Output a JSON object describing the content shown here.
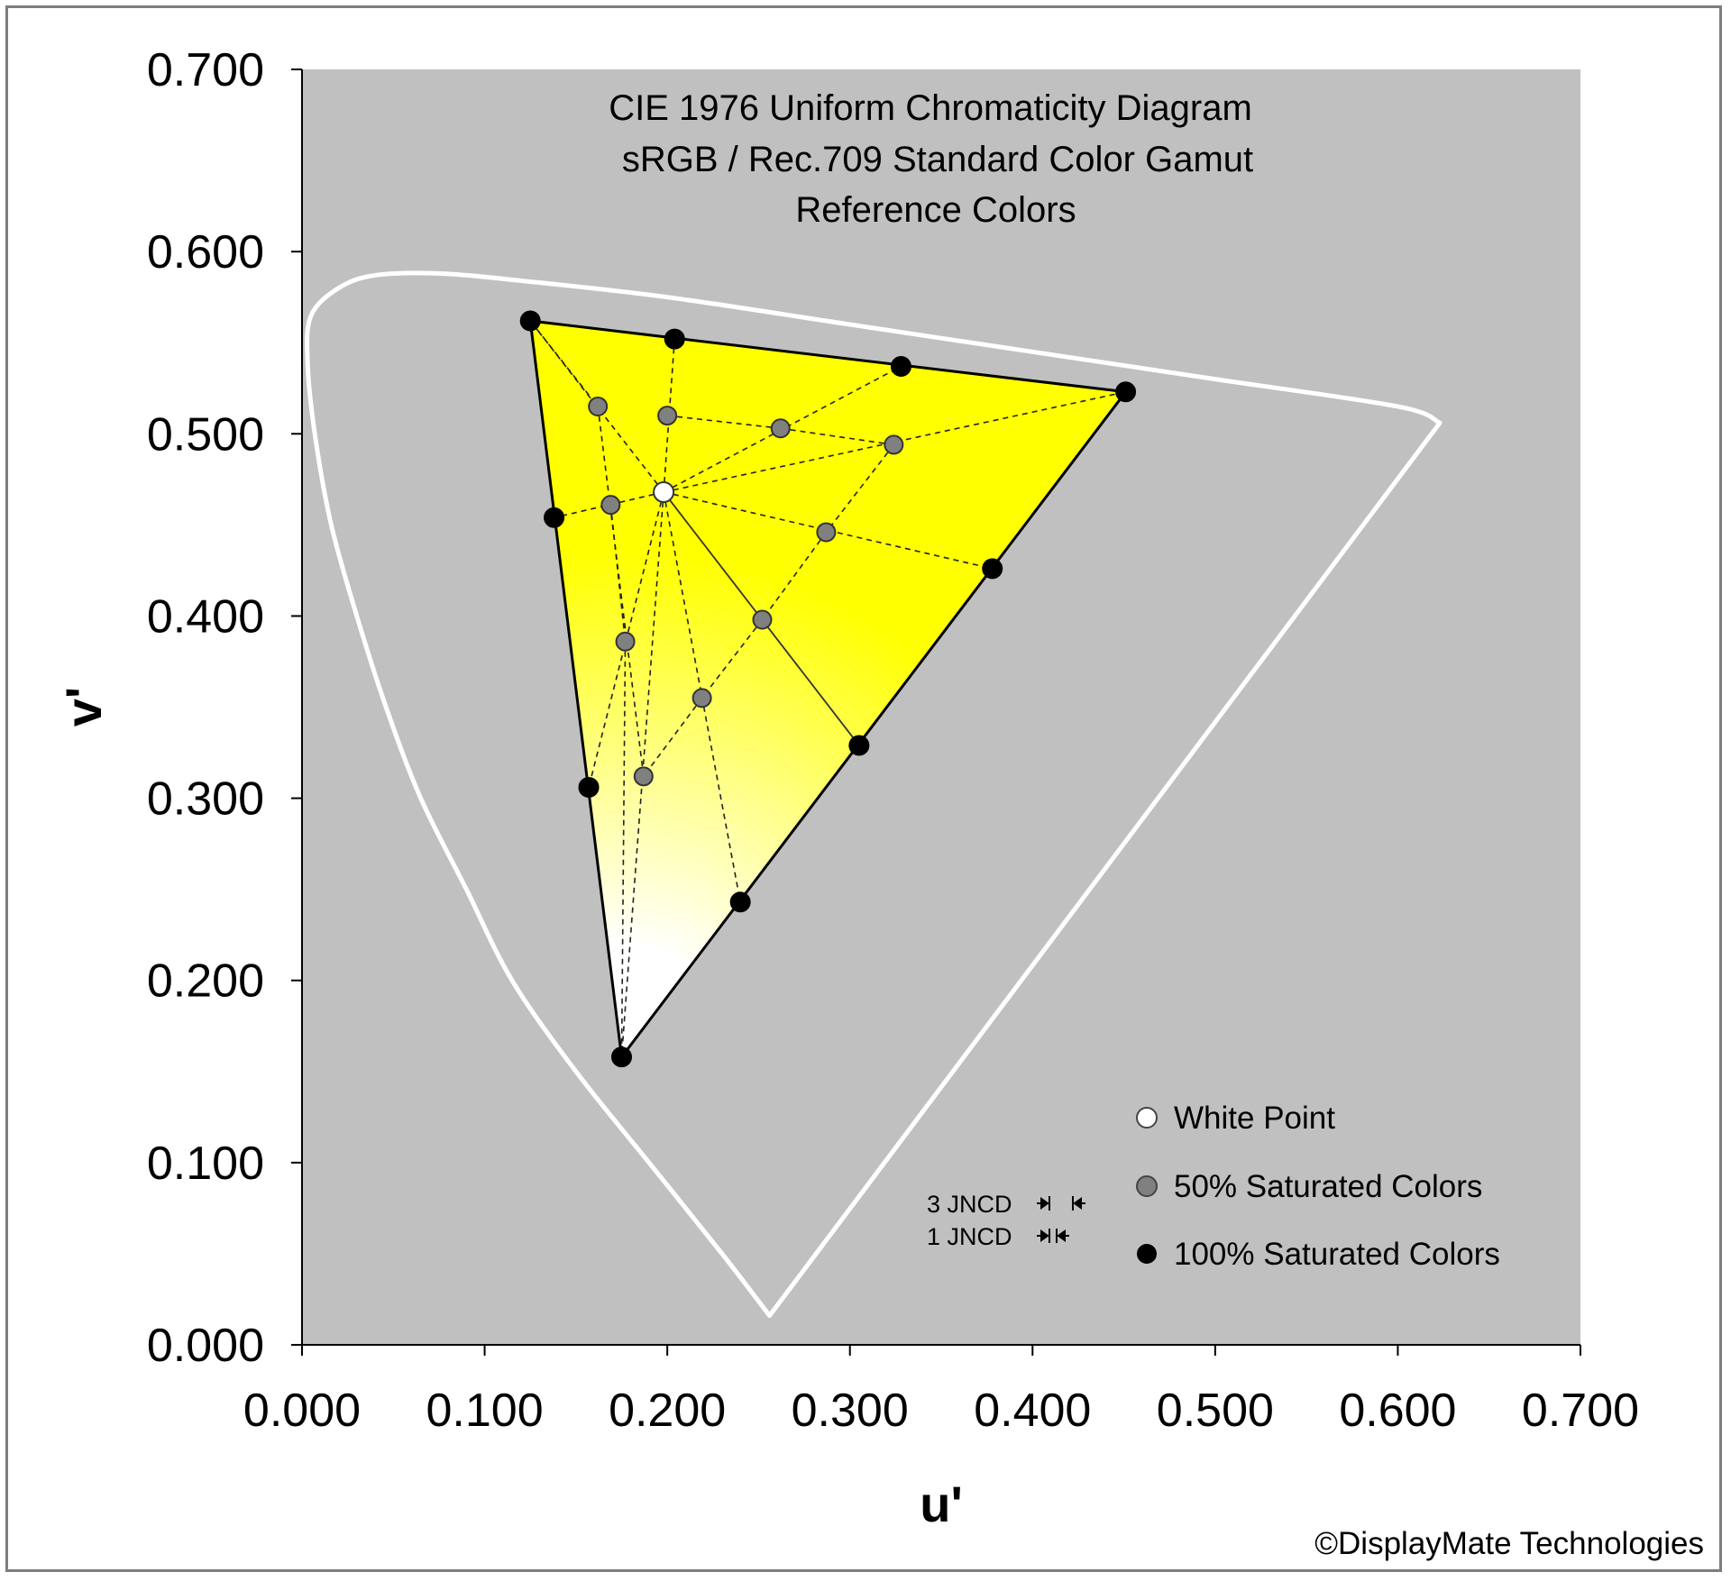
{
  "chart_data": {
    "type": "scatter",
    "title": [
      "CIE 1976 Uniform Chromaticity Diagram",
      "sRGB / Rec.709 Standard Color Gamut",
      "Reference Colors"
    ],
    "xlabel": "u'",
    "ylabel": "v'",
    "xlim": [
      0.0,
      0.7
    ],
    "ylim": [
      0.0,
      0.7
    ],
    "x_ticks": [
      "0.000",
      "0.100",
      "0.200",
      "0.300",
      "0.400",
      "0.500",
      "0.600",
      "0.700"
    ],
    "y_ticks": [
      "0.000",
      "0.100",
      "0.200",
      "0.300",
      "0.400",
      "0.500",
      "0.600",
      "0.700"
    ],
    "background": "#c0c0c0",
    "grid": false,
    "legend_position": "bottom-right",
    "spectral_locus": [
      [
        0.256,
        0.016
      ],
      [
        0.23,
        0.05
      ],
      [
        0.19,
        0.1
      ],
      [
        0.15,
        0.15
      ],
      [
        0.115,
        0.2
      ],
      [
        0.09,
        0.25
      ],
      [
        0.065,
        0.3
      ],
      [
        0.046,
        0.35
      ],
      [
        0.03,
        0.4
      ],
      [
        0.016,
        0.45
      ],
      [
        0.007,
        0.5
      ],
      [
        0.003,
        0.54
      ],
      [
        0.005,
        0.565
      ],
      [
        0.02,
        0.58
      ],
      [
        0.04,
        0.587
      ],
      [
        0.075,
        0.588
      ],
      [
        0.12,
        0.584
      ],
      [
        0.2,
        0.575
      ],
      [
        0.3,
        0.56
      ],
      [
        0.4,
        0.545
      ],
      [
        0.5,
        0.53
      ],
      [
        0.6,
        0.515
      ],
      [
        0.623,
        0.506
      ]
    ],
    "gamut_triangle": {
      "red": [
        0.451,
        0.523
      ],
      "green": [
        0.125,
        0.562
      ],
      "blue": [
        0.175,
        0.158
      ]
    },
    "series": [
      {
        "name": "White Point",
        "color": "#ffffff",
        "points": [
          [
            0.198,
            0.468
          ]
        ]
      },
      {
        "name": "50% Saturated Colors",
        "color": "#808080",
        "points": [
          [
            0.162,
            0.515
          ],
          [
            0.2,
            0.51
          ],
          [
            0.262,
            0.503
          ],
          [
            0.324,
            0.494
          ],
          [
            0.169,
            0.461
          ],
          [
            0.287,
            0.446
          ],
          [
            0.177,
            0.386
          ],
          [
            0.252,
            0.398
          ],
          [
            0.219,
            0.355
          ],
          [
            0.187,
            0.312
          ]
        ]
      },
      {
        "name": "100% Saturated Colors",
        "color": "#000000",
        "points": [
          [
            0.125,
            0.562
          ],
          [
            0.204,
            0.552
          ],
          [
            0.328,
            0.537
          ],
          [
            0.451,
            0.523
          ],
          [
            0.138,
            0.454
          ],
          [
            0.378,
            0.426
          ],
          [
            0.305,
            0.329
          ],
          [
            0.157,
            0.306
          ],
          [
            0.24,
            0.243
          ],
          [
            0.175,
            0.158
          ]
        ]
      }
    ],
    "annotations": [
      "3 JNCD",
      "1 JNCD"
    ],
    "credit": "©DisplayMate Technologies"
  },
  "colors": {
    "plot_background": "#c0c0c0",
    "locus": "#ffffff",
    "frame": "#7d7d7d"
  }
}
